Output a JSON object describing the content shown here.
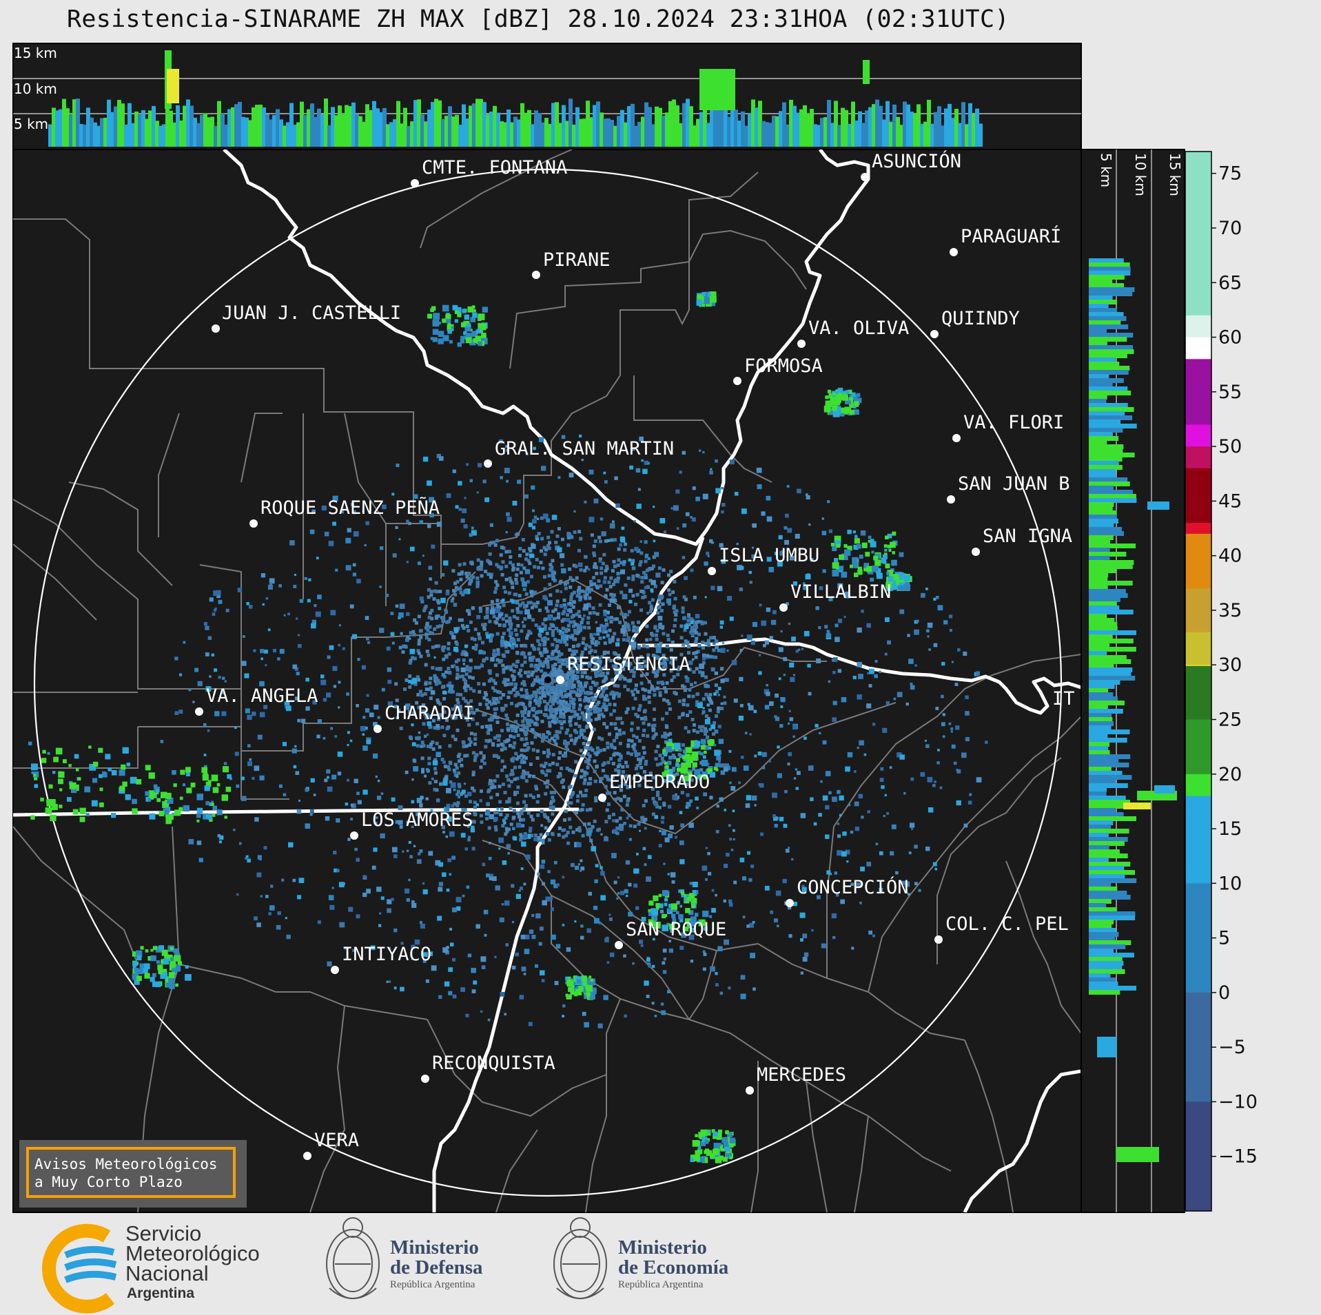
{
  "header": {
    "title": "Resistencia-SINARAME ZH MAX [dBZ] 28.10.2024 23:31HOA (02:31UTC)"
  },
  "top_panel": {
    "height_labels": [
      "15 km",
      "10 km",
      "5 km"
    ]
  },
  "side_panel": {
    "height_labels": [
      "5 km",
      "10 km",
      "15 km"
    ]
  },
  "colorbar": {
    "ticks": [
      "75",
      "70",
      "65",
      "60",
      "55",
      "50",
      "45",
      "40",
      "35",
      "30",
      "25",
      "20",
      "15",
      "10",
      "5",
      "0",
      "−5",
      "−10",
      "−15"
    ],
    "range_dbz": [
      -20,
      77
    ],
    "colors": {
      "low": "#3a3f6e",
      "blue": "#2e86c1",
      "cyan": "#2aa8e0",
      "green": "#3ee030",
      "dark_green": "#2a7a22",
      "yellow": "#e8e830",
      "olive": "#c8b830",
      "orange": "#e08a10",
      "red": "#e0102a",
      "dark_red": "#900010",
      "magenta": "#e010e0",
      "purple": "#9a10a0",
      "white": "#ffffff",
      "mint": "#90e0c0"
    }
  },
  "map": {
    "background": "#1a1a1a",
    "cities": [
      {
        "name": "CMTE. FONTANA"
      },
      {
        "name": "ASUNCIÓN"
      },
      {
        "name": "PARAGUARÍ"
      },
      {
        "name": "PIRANE"
      },
      {
        "name": "JUAN J. CASTELLI"
      },
      {
        "name": "VA. OLIVA"
      },
      {
        "name": "QUIINDY"
      },
      {
        "name": "FORMOSA"
      },
      {
        "name": "VA. FLORI"
      },
      {
        "name": "GRAL. SAN MARTIN"
      },
      {
        "name": "SAN JUAN B"
      },
      {
        "name": "ROQUE SAENZ PEÑA"
      },
      {
        "name": "SAN IGNA"
      },
      {
        "name": "ISLA UMBU"
      },
      {
        "name": "VILLALBIN"
      },
      {
        "name": "RESISTENCIA"
      },
      {
        "name": "VA. ANGELA"
      },
      {
        "name": "CHARADAI"
      },
      {
        "name": "IT"
      },
      {
        "name": "EMPEDRADO"
      },
      {
        "name": "LOS AMORES"
      },
      {
        "name": "CONCEPCIÓN"
      },
      {
        "name": "COL. C. PEL"
      },
      {
        "name": "SAN ROQUE"
      },
      {
        "name": "INTIYACO"
      },
      {
        "name": "RECONQUISTA"
      },
      {
        "name": "MERCEDES"
      },
      {
        "name": "VERA"
      }
    ]
  },
  "avisos": {
    "line1": "Avisos Meteorológicos",
    "line2": "a Muy Corto Plazo"
  },
  "footer": {
    "smn": {
      "line1": "Servicio",
      "line2": "Meteorológico",
      "line3": "Nacional",
      "country": "Argentina"
    },
    "defensa": {
      "line1": "Ministerio",
      "line2": "de Defensa",
      "sub": "República Argentina"
    },
    "economia": {
      "line1": "Ministerio",
      "line2": "de Economía",
      "sub": "República Argentina"
    }
  }
}
